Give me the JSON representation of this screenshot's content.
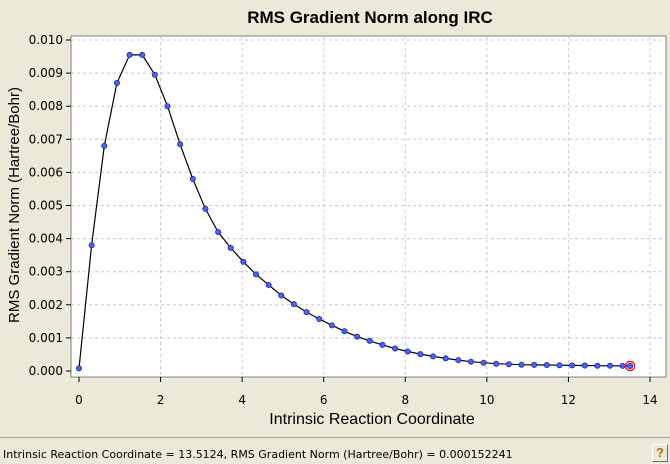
{
  "chart_data": {
    "type": "line",
    "title": "RMS Gradient Norm along IRC",
    "xlabel": "Intrinsic Reaction Coordinate",
    "ylabel": "RMS Gradient Norm (Hartree/Bohr)",
    "xlim": [
      0,
      14
    ],
    "ylim": [
      0,
      0.01
    ],
    "x_ticks": [
      "0",
      "2",
      "4",
      "6",
      "8",
      "10",
      "12",
      "14"
    ],
    "y_ticks": [
      "0.000",
      "0.001",
      "0.002",
      "0.003",
      "0.004",
      "0.005",
      "0.006",
      "0.007",
      "0.008",
      "0.009",
      "0.010"
    ],
    "grid": true,
    "line_color": "#000000",
    "marker_color": "#4a62ff",
    "highlight_color": "#ff0000",
    "series": [
      {
        "x": [
          0,
          0.31,
          0.62,
          0.93,
          1.24,
          1.55,
          1.86,
          2.17,
          2.48,
          2.79,
          3.1,
          3.41,
          3.72,
          4.03,
          4.34,
          4.65,
          4.96,
          5.27,
          5.58,
          5.89,
          6.2,
          6.51,
          6.82,
          7.13,
          7.44,
          7.75,
          8.06,
          8.37,
          8.68,
          8.99,
          9.3,
          9.61,
          9.92,
          10.23,
          10.54,
          10.85,
          11.16,
          11.47,
          11.78,
          12.09,
          12.4,
          12.71,
          13.02,
          13.33,
          13.5124
        ],
        "y": [
          8e-05,
          0.0038,
          0.0068,
          0.0087,
          0.00955,
          0.00955,
          0.00895,
          0.008,
          0.00685,
          0.0058,
          0.0049,
          0.0042,
          0.00372,
          0.0033,
          0.00292,
          0.0026,
          0.00228,
          0.00202,
          0.00178,
          0.00157,
          0.00138,
          0.0012,
          0.00104,
          0.00091,
          0.00079,
          0.00068,
          0.00059,
          0.00051,
          0.00044,
          0.00038,
          0.00033,
          0.00028,
          0.00025,
          0.00022,
          0.000205,
          0.00019,
          0.000185,
          0.00018,
          0.000175,
          0.00017,
          0.000165,
          0.00016,
          0.000158,
          0.000155,
          0.000152241
        ]
      }
    ],
    "highlight_point": {
      "x": 13.5124,
      "y": 0.000152241
    }
  },
  "status": {
    "text": "Intrinsic Reaction Coordinate = 13.5124, RMS Gradient Norm (Hartree/Bohr) = 0.000152241",
    "help_glyph": "?"
  }
}
